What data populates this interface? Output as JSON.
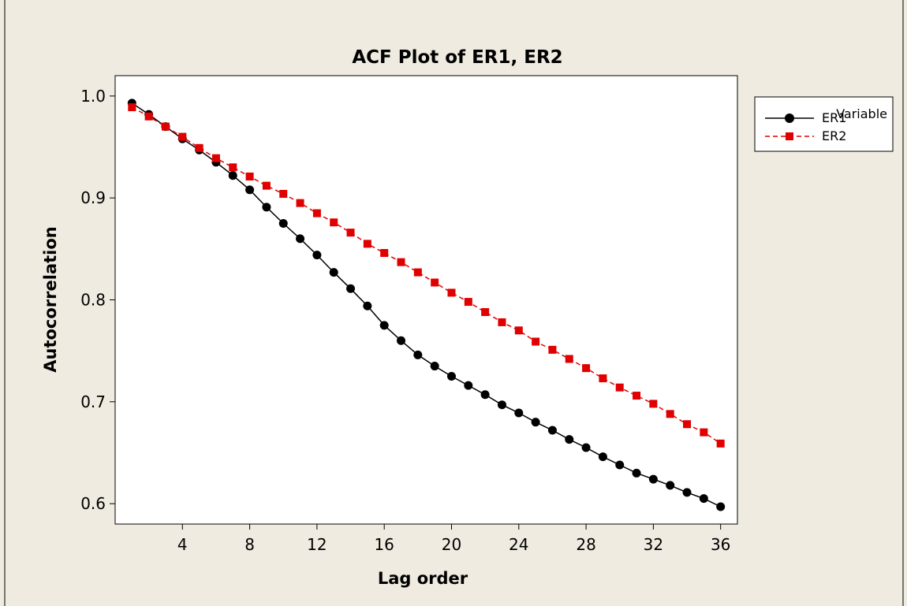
{
  "chart_data": {
    "type": "line",
    "title": "ACF  Plot of ER1, ER2",
    "xlabel": "Lag order",
    "ylabel": "Autocorrelation",
    "xlim": [
      0,
      37
    ],
    "ylim": [
      0.58,
      1.02
    ],
    "xticks": [
      4,
      8,
      12,
      16,
      20,
      24,
      28,
      32,
      36
    ],
    "yticks": [
      0.6,
      0.7,
      0.8,
      0.9,
      1.0
    ],
    "ytick_labels": [
      "0.6",
      "0.7",
      "0.8",
      "0.9",
      "1.0"
    ],
    "grid": false,
    "legend": {
      "title": "Variable",
      "placement": "outside-right"
    },
    "x": [
      1,
      2,
      3,
      4,
      5,
      6,
      7,
      8,
      9,
      10,
      11,
      12,
      13,
      14,
      15,
      16,
      17,
      18,
      19,
      20,
      21,
      22,
      23,
      24,
      25,
      26,
      27,
      28,
      29,
      30,
      31,
      32,
      33,
      34,
      35,
      36
    ],
    "series": [
      {
        "name": "ER1",
        "color": "#000000",
        "marker": "circle",
        "line_style": "solid",
        "values": [
          0.993,
          0.982,
          0.97,
          0.958,
          0.947,
          0.935,
          0.922,
          0.908,
          0.891,
          0.875,
          0.86,
          0.844,
          0.827,
          0.811,
          0.794,
          0.775,
          0.76,
          0.746,
          0.735,
          0.725,
          0.716,
          0.707,
          0.697,
          0.689,
          0.68,
          0.672,
          0.663,
          0.655,
          0.646,
          0.638,
          0.63,
          0.624,
          0.618,
          0.611,
          0.605,
          0.597
        ]
      },
      {
        "name": "ER2",
        "color": "#e00000",
        "marker": "square",
        "line_style": "dashed",
        "values": [
          0.989,
          0.98,
          0.97,
          0.96,
          0.949,
          0.939,
          0.93,
          0.921,
          0.912,
          0.904,
          0.895,
          0.885,
          0.876,
          0.866,
          0.855,
          0.846,
          0.837,
          0.827,
          0.817,
          0.807,
          0.798,
          0.788,
          0.778,
          0.77,
          0.759,
          0.751,
          0.742,
          0.733,
          0.723,
          0.714,
          0.706,
          0.698,
          0.688,
          0.678,
          0.67,
          0.659
        ]
      }
    ]
  },
  "colors": {
    "background": "#efebe1",
    "plot_bg": "#ffffff",
    "frame": "#000000"
  }
}
